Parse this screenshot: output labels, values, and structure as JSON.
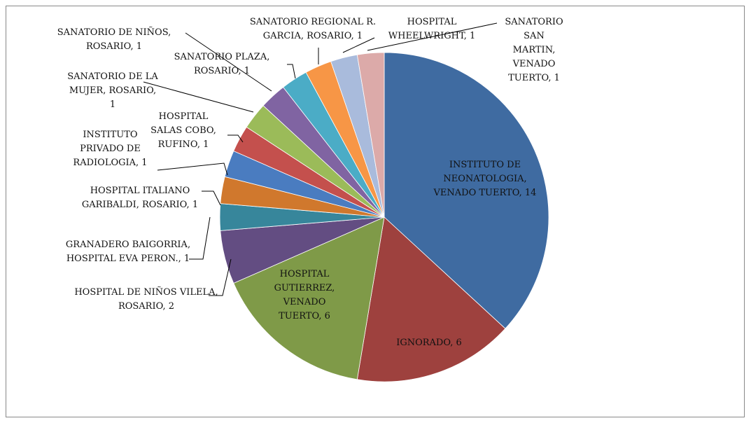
{
  "chart_data": {
    "type": "pie",
    "categories": [
      "INSTITUTO DE NEONATOLOGIA, VENADO TUERTO",
      "IGNORADO",
      "HOSPITAL GUTIERREZ, VENADO TUERTO",
      "HOSPITAL DE NIÑOS VILELA, ROSARIO",
      "GRANADERO BAIGORRIA, HOSPITAL EVA PERON.",
      "HOSPITAL ITALIANO GARIBALDI, ROSARIO",
      "INSTITUTO PRIVADO DE RADIOLOGIA",
      "HOSPITAL SALAS COBO, RUFINO",
      "SANATORIO DE LA MUJER, ROSARIO",
      "SANATORIO DE NIÑOS, ROSARIO",
      "SANATORIO PLAZA, ROSARIO",
      "SANATORIO REGIONAL R. GARCIA, ROSARIO",
      "HOSPITAL WHEELWRIGHT",
      "SANATORIO SAN MARTIN, VENADO TUERTO"
    ],
    "values": [
      14,
      6,
      6,
      2,
      1,
      1,
      1,
      1,
      1,
      1,
      1,
      1,
      1,
      1
    ],
    "colors": [
      "#3f6ba1",
      "#9e413e",
      "#7f9a48",
      "#634d82",
      "#37869b",
      "#d0782d",
      "#4a7cc0",
      "#c4504d",
      "#9bbb59",
      "#8064a2",
      "#4bacc6",
      "#f79646",
      "#a9bbdc",
      "#dcaaa9"
    ],
    "label_separator": ", "
  }
}
